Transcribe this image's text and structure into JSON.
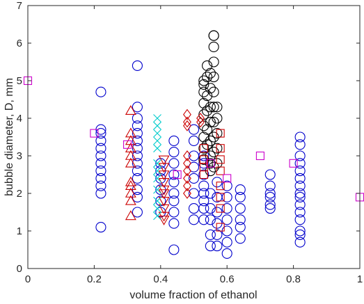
{
  "chart_data": {
    "type": "scatter",
    "title": "",
    "xlabel": "volume fraction of ethanol",
    "ylabel": "bubble diameter, D, mm",
    "xlim": [
      0,
      1
    ],
    "ylim": [
      0,
      7
    ],
    "xticks": [
      0,
      0.2,
      0.4,
      0.6,
      0.8,
      1
    ],
    "xtick_labels": [
      "0",
      "0.2",
      "0.4",
      "0.6",
      "0.8",
      "1"
    ],
    "yticks": [
      0,
      1,
      2,
      3,
      4,
      5,
      6,
      7
    ],
    "ytick_labels": [
      "0",
      "1",
      "2",
      "3",
      "4",
      "5",
      "6",
      "7"
    ],
    "grid": false,
    "legend": "none",
    "series": [
      {
        "marker": "circle",
        "color": "#0000cc",
        "points": [
          [
            0.22,
            1.1
          ],
          [
            0.22,
            2.0
          ],
          [
            0.22,
            2.2
          ],
          [
            0.22,
            2.4
          ],
          [
            0.22,
            2.6
          ],
          [
            0.22,
            2.8
          ],
          [
            0.22,
            3.0
          ],
          [
            0.22,
            3.2
          ],
          [
            0.22,
            3.4
          ],
          [
            0.22,
            3.6
          ],
          [
            0.22,
            3.7
          ],
          [
            0.22,
            4.7
          ],
          [
            0.33,
            1.5
          ],
          [
            0.33,
            1.9
          ],
          [
            0.33,
            2.1
          ],
          [
            0.33,
            2.4
          ],
          [
            0.33,
            2.6
          ],
          [
            0.33,
            2.8
          ],
          [
            0.33,
            3.0
          ],
          [
            0.33,
            3.2
          ],
          [
            0.33,
            3.4
          ],
          [
            0.33,
            3.6
          ],
          [
            0.33,
            3.8
          ],
          [
            0.33,
            4.0
          ],
          [
            0.33,
            4.3
          ],
          [
            0.33,
            5.4
          ],
          [
            0.4,
            1.5
          ],
          [
            0.4,
            1.8
          ],
          [
            0.4,
            2.1
          ],
          [
            0.4,
            2.4
          ],
          [
            0.4,
            2.6
          ],
          [
            0.4,
            2.8
          ],
          [
            0.44,
            0.5
          ],
          [
            0.44,
            1.2
          ],
          [
            0.44,
            1.5
          ],
          [
            0.44,
            1.8
          ],
          [
            0.44,
            2.0
          ],
          [
            0.44,
            2.3
          ],
          [
            0.44,
            2.5
          ],
          [
            0.44,
            2.8
          ],
          [
            0.44,
            3.1
          ],
          [
            0.44,
            3.4
          ],
          [
            0.5,
            1.3
          ],
          [
            0.5,
            1.6
          ],
          [
            0.5,
            2.0
          ],
          [
            0.5,
            2.4
          ],
          [
            0.5,
            2.7
          ],
          [
            0.5,
            3.0
          ],
          [
            0.5,
            3.4
          ],
          [
            0.5,
            3.7
          ],
          [
            0.53,
            1.3
          ],
          [
            0.53,
            1.6
          ],
          [
            0.53,
            1.8
          ],
          [
            0.53,
            2.0
          ],
          [
            0.53,
            2.2
          ],
          [
            0.53,
            2.5
          ],
          [
            0.53,
            2.8
          ],
          [
            0.53,
            3.0
          ],
          [
            0.55,
            0.6
          ],
          [
            0.55,
            0.9
          ],
          [
            0.55,
            1.3
          ],
          [
            0.55,
            1.6
          ],
          [
            0.55,
            2.0
          ],
          [
            0.57,
            0.6
          ],
          [
            0.57,
            0.9
          ],
          [
            0.57,
            1.2
          ],
          [
            0.57,
            1.5
          ],
          [
            0.57,
            1.9
          ],
          [
            0.57,
            2.3
          ],
          [
            0.6,
            0.4
          ],
          [
            0.6,
            0.7
          ],
          [
            0.6,
            1.0
          ],
          [
            0.6,
            1.3
          ],
          [
            0.6,
            1.6
          ],
          [
            0.6,
            1.9
          ],
          [
            0.6,
            2.2
          ],
          [
            0.64,
            0.8
          ],
          [
            0.64,
            1.1
          ],
          [
            0.64,
            1.3
          ],
          [
            0.64,
            1.6
          ],
          [
            0.64,
            1.9
          ],
          [
            0.64,
            2.1
          ],
          [
            0.73,
            1.6
          ],
          [
            0.73,
            1.7
          ],
          [
            0.73,
            1.9
          ],
          [
            0.73,
            2.0
          ],
          [
            0.73,
            2.2
          ],
          [
            0.73,
            2.5
          ],
          [
            0.82,
            0.7
          ],
          [
            0.82,
            0.9
          ],
          [
            0.82,
            1.0
          ],
          [
            0.82,
            1.3
          ],
          [
            0.82,
            1.5
          ],
          [
            0.82,
            1.7
          ],
          [
            0.82,
            1.9
          ],
          [
            0.82,
            2.0
          ],
          [
            0.82,
            2.2
          ],
          [
            0.82,
            2.4
          ],
          [
            0.82,
            2.6
          ],
          [
            0.82,
            2.8
          ],
          [
            0.82,
            3.0
          ],
          [
            0.82,
            3.3
          ],
          [
            0.82,
            3.5
          ]
        ]
      },
      {
        "marker": "circle",
        "color": "#000000",
        "points": [
          [
            0.53,
            2.9
          ],
          [
            0.53,
            3.2
          ],
          [
            0.53,
            3.5
          ],
          [
            0.53,
            3.8
          ],
          [
            0.53,
            4.1
          ],
          [
            0.53,
            4.4
          ],
          [
            0.53,
            4.7
          ],
          [
            0.53,
            4.9
          ],
          [
            0.53,
            5.0
          ],
          [
            0.54,
            3.3
          ],
          [
            0.54,
            3.7
          ],
          [
            0.54,
            4.2
          ],
          [
            0.54,
            4.6
          ],
          [
            0.54,
            5.1
          ],
          [
            0.54,
            5.4
          ],
          [
            0.55,
            2.6
          ],
          [
            0.55,
            2.8
          ],
          [
            0.55,
            3.0
          ],
          [
            0.55,
            3.4
          ],
          [
            0.55,
            3.9
          ],
          [
            0.55,
            4.3
          ],
          [
            0.55,
            4.8
          ],
          [
            0.55,
            5.2
          ],
          [
            0.56,
            2.7
          ],
          [
            0.56,
            3.1
          ],
          [
            0.56,
            3.5
          ],
          [
            0.56,
            3.9
          ],
          [
            0.56,
            4.3
          ],
          [
            0.56,
            4.7
          ],
          [
            0.56,
            5.1
          ],
          [
            0.56,
            5.5
          ],
          [
            0.56,
            5.9
          ],
          [
            0.56,
            6.2
          ],
          [
            0.56,
            6.2
          ],
          [
            0.57,
            2.8
          ],
          [
            0.57,
            3.2
          ],
          [
            0.57,
            3.6
          ],
          [
            0.57,
            4.0
          ],
          [
            0.57,
            4.3
          ]
        ]
      },
      {
        "marker": "triangle-up",
        "color": "#cc0000",
        "points": [
          [
            0.31,
            1.4
          ],
          [
            0.31,
            1.8
          ],
          [
            0.31,
            2.0
          ],
          [
            0.31,
            2.2
          ],
          [
            0.31,
            2.3
          ],
          [
            0.31,
            2.8
          ],
          [
            0.31,
            3.0
          ],
          [
            0.31,
            3.2
          ],
          [
            0.31,
            3.4
          ],
          [
            0.31,
            3.6
          ],
          [
            0.31,
            4.2
          ]
        ]
      },
      {
        "marker": "triangle-down",
        "color": "#cc0000",
        "points": [
          [
            0.41,
            1.3
          ],
          [
            0.41,
            1.4
          ],
          [
            0.41,
            1.6
          ],
          [
            0.41,
            1.8
          ],
          [
            0.41,
            2.0
          ],
          [
            0.41,
            2.1
          ],
          [
            0.41,
            2.3
          ],
          [
            0.41,
            2.5
          ],
          [
            0.41,
            2.7
          ],
          [
            0.41,
            2.9
          ]
        ]
      },
      {
        "marker": "diamond",
        "color": "#cc0000",
        "points": [
          [
            0.48,
            2.0
          ],
          [
            0.48,
            2.2
          ],
          [
            0.48,
            2.4
          ],
          [
            0.48,
            2.6
          ],
          [
            0.48,
            2.8
          ],
          [
            0.48,
            3.0
          ],
          [
            0.48,
            3.8
          ],
          [
            0.48,
            3.9
          ],
          [
            0.48,
            4.1
          ],
          [
            0.52,
            3.9
          ],
          [
            0.52,
            4.0
          ]
        ]
      },
      {
        "marker": "square",
        "color": "#cc0000",
        "points": [
          [
            0.53,
            2.5
          ],
          [
            0.53,
            2.7
          ],
          [
            0.53,
            2.9
          ],
          [
            0.53,
            3.2
          ],
          [
            0.58,
            1.1
          ],
          [
            0.58,
            1.6
          ],
          [
            0.58,
            1.9
          ],
          [
            0.58,
            2.2
          ],
          [
            0.58,
            2.6
          ],
          [
            0.58,
            2.9
          ],
          [
            0.58,
            3.2
          ],
          [
            0.58,
            3.6
          ]
        ]
      },
      {
        "marker": "cross",
        "color": "#00cccc",
        "points": [
          [
            0.39,
            1.4
          ],
          [
            0.39,
            1.6
          ],
          [
            0.39,
            1.8
          ],
          [
            0.39,
            2.1
          ],
          [
            0.39,
            2.4
          ],
          [
            0.39,
            2.6
          ],
          [
            0.39,
            2.8
          ],
          [
            0.39,
            3.2
          ],
          [
            0.39,
            3.4
          ],
          [
            0.39,
            3.6
          ],
          [
            0.39,
            3.8
          ],
          [
            0.39,
            4.0
          ]
        ]
      },
      {
        "marker": "square",
        "color": "#cc00cc",
        "points": [
          [
            0.0,
            5.0
          ],
          [
            0.2,
            3.6
          ],
          [
            0.3,
            3.3
          ],
          [
            0.45,
            2.5
          ],
          [
            0.55,
            2.8
          ],
          [
            0.6,
            2.4
          ],
          [
            0.7,
            3.0
          ],
          [
            0.8,
            2.8
          ],
          [
            1.0,
            1.9
          ]
        ]
      }
    ]
  }
}
